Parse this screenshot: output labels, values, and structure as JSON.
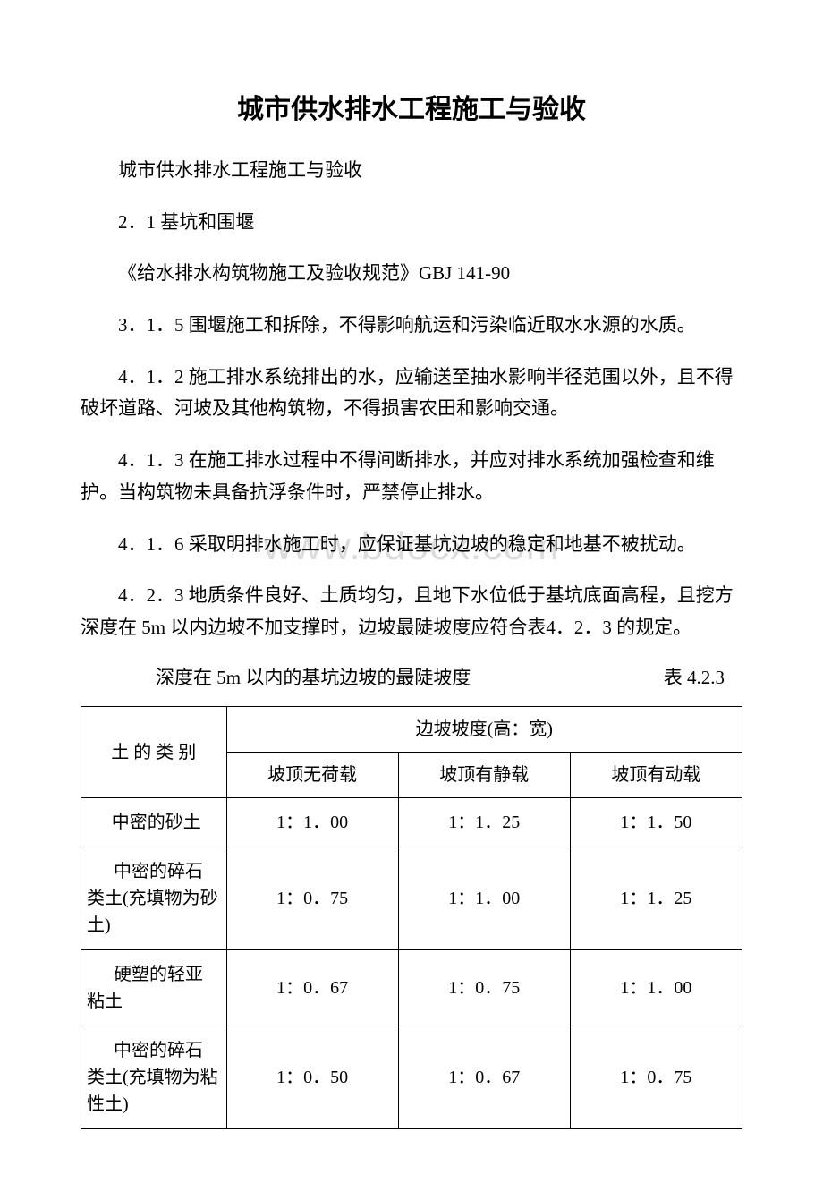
{
  "title": "城市供水排水工程施工与验收",
  "paragraphs": {
    "p1": "城市供水排水工程施工与验收",
    "p2": "2．1 基坑和围堰",
    "p3": "《给水排水构筑物施工及验收规范》GBJ 141-90",
    "p4": "3．1．5 围堰施工和拆除，不得影响航运和污染临近取水水源的水质。",
    "p5": "4．1．2 施工排水系统排出的水，应输送至抽水影响半径范围以外，且不得破坏道路、河坡及其他构筑物，不得损害农田和影响交通。",
    "p6": "4．1．3 在施工排水过程中不得间断排水，并应对排水系统加强检查和维护。当构筑物未具备抗浮条件时，严禁停止排水。",
    "p7": "4．1．6 采取明排水施工时，应保证基坑边坡的稳定和地基不被扰动。",
    "p8": "4．2．3 地质条件良好、土质均匀，且地下水位低于基坑底面高程，且挖方深度在 5m 以内边坡不加支撑时，边坡最陡坡度应符合表4．2．3 的规定。"
  },
  "table_caption": {
    "left": "深度在 5m 以内的基坑边坡的最陡坡度",
    "right": "表 4.2.3"
  },
  "watermark": "www.bdocx.com",
  "table": {
    "header": {
      "soil_type": "土 的 类 别",
      "slope_header": "边坡坡度(高：宽)",
      "col1": "坡顶无荷载",
      "col2": "坡顶有静载",
      "col3": "坡顶有动载"
    },
    "rows": [
      {
        "soil": "中密的砂土",
        "c1": "1：1．00",
        "c2": "1：1．25",
        "c3": "1：1．50"
      },
      {
        "soil": "中密的碎石类土(充填物为砂土)",
        "c1": "1：0．75",
        "c2": "1：1．00",
        "c3": "1：1．25"
      },
      {
        "soil": "硬塑的轻亚粘土",
        "c1": "1：0．67",
        "c2": "1：0．75",
        "c3": "1：1．00"
      },
      {
        "soil": "中密的碎石类土(充填物为粘性土)",
        "c1": "1：0．50",
        "c2": "1：0．67",
        "c3": "1：0．75"
      }
    ]
  }
}
